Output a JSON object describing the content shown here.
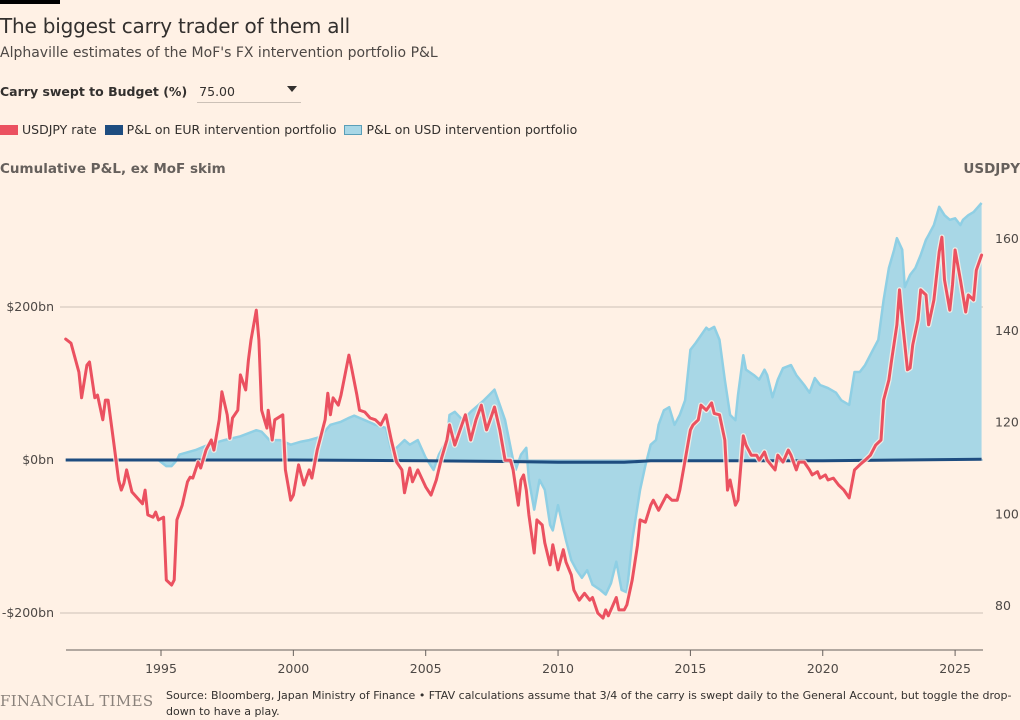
{
  "header": {
    "title": "The biggest carry trader of them all",
    "subtitle": "Alphaville estimates of the MoF's FX intervention portfolio P&L"
  },
  "control": {
    "label": "Carry swept to Budget (%)",
    "selected_value": "75.00",
    "icon": "caret-down-icon"
  },
  "legend": [
    {
      "label": "USDJPY rate",
      "color": "#eb5160",
      "style": "filled"
    },
    {
      "label": "P&L on EUR intervention portfolio",
      "color": "#1e4d80",
      "style": "filled"
    },
    {
      "label": "P&L on USD intervention portfolio",
      "color": "#a8d7e6",
      "style": "outlined"
    }
  ],
  "axes": {
    "left_title": "Cumulative P&L, ex MoF skim",
    "right_title": "USDJPY"
  },
  "footer": {
    "logo": "FINANCIAL TIMES",
    "source": "Source: Bloomberg, Japan Ministry of Finance • FTAV calculations assume that 3/4 of the carry is swept daily to the General Account, but toggle the drop-down to have a play."
  },
  "chart_data": {
    "type": "area",
    "title": "The biggest carry trader of them all",
    "xlabel": "",
    "ylabel": "Cumulative P&L, ex MoF skim",
    "y2label": "USDJPY",
    "xlim": [
      1991.4,
      2026.0
    ],
    "ylim": [
      -250,
      300
    ],
    "y2lim": [
      72,
      169
    ],
    "x_ticks": [
      1995,
      2000,
      2005,
      2010,
      2015,
      2020,
      2025
    ],
    "x_tick_labels": [
      "1995",
      "2000",
      "2005",
      "2010",
      "2015",
      "2020",
      "2025"
    ],
    "y_ticks": [
      200,
      0,
      -200
    ],
    "y_tick_labels": [
      "$200bn",
      "$0bn",
      "-$200bn"
    ],
    "y2_ticks": [
      160,
      140,
      120,
      100,
      80
    ],
    "y2_tick_labels": [
      "160",
      "140",
      "120",
      "100",
      "80"
    ],
    "grid": true,
    "legend_position": "top-left",
    "series": [
      {
        "name": "P&L on USD intervention portfolio",
        "type": "area",
        "axis": "left",
        "units": "USD bn",
        "fill": "#a8d7e6",
        "stroke": "#8fcfe4",
        "x": [
          1991.4,
          1994.9,
          1995.2,
          1995.4,
          1995.6,
          1995.7,
          1996.3,
          1996.8,
          1997.4,
          1998.0,
          1998.6,
          1998.8,
          1999.1,
          1999.5,
          1999.9,
          2000.3,
          2000.6,
          2001.0,
          2001.4,
          2001.8,
          2002.1,
          2002.3,
          2002.7,
          2003.1,
          2003.5,
          2003.7,
          2003.9,
          2004.2,
          2004.4,
          2004.7,
          2005.0,
          2005.3,
          2005.5,
          2005.8,
          2005.9,
          2006.1,
          2006.4,
          2006.7,
          2007.0,
          2007.2,
          2007.4,
          2007.6,
          2007.8,
          2008.0,
          2008.3,
          2008.4,
          2008.6,
          2008.8,
          2008.9,
          2009.1,
          2009.3,
          2009.5,
          2009.7,
          2009.8,
          2010.0,
          2010.3,
          2010.5,
          2010.7,
          2010.9,
          2011.1,
          2011.3,
          2011.6,
          2011.8,
          2012.0,
          2012.2,
          2012.4,
          2012.6,
          2012.8,
          2013.1,
          2013.3,
          2013.5,
          2013.7,
          2013.8,
          2014.0,
          2014.2,
          2014.4,
          2014.6,
          2014.8,
          2015.0,
          2015.2,
          2015.4,
          2015.6,
          2015.7,
          2015.9,
          2016.1,
          2016.3,
          2016.5,
          2016.7,
          2016.8,
          2017.0,
          2017.1,
          2017.4,
          2017.6,
          2017.8,
          2017.9,
          2018.1,
          2018.3,
          2018.5,
          2018.8,
          2019.0,
          2019.3,
          2019.5,
          2019.7,
          2019.9,
          2020.2,
          2020.5,
          2020.7,
          2021.0,
          2021.2,
          2021.4,
          2021.6,
          2021.9,
          2022.1,
          2022.3,
          2022.5,
          2022.7,
          2022.8,
          2023.0,
          2023.1,
          2023.3,
          2023.5,
          2023.7,
          2023.9,
          2024.0,
          2024.2,
          2024.4,
          2024.6,
          2024.8,
          2025.0,
          2025.2,
          2025.3,
          2025.5,
          2025.7,
          2026.0
        ],
        "values": [
          0,
          0,
          -8,
          -8,
          0,
          7,
          13,
          20,
          26,
          31,
          39,
          37,
          26,
          26,
          20,
          24,
          26,
          30,
          46,
          50,
          55,
          58,
          52,
          46,
          42,
          13,
          16,
          26,
          20,
          26,
          3,
          -13,
          7,
          26,
          59,
          63,
          52,
          63,
          72,
          78,
          85,
          92,
          72,
          52,
          0,
          -13,
          7,
          16,
          -26,
          -65,
          -26,
          -39,
          -85,
          -92,
          -59,
          -105,
          -131,
          -144,
          -154,
          -144,
          -163,
          -170,
          -176,
          -161,
          -133,
          -170,
          -173,
          -105,
          -39,
          -7,
          20,
          26,
          46,
          65,
          69,
          46,
          59,
          78,
          144,
          153,
          163,
          173,
          170,
          174,
          157,
          105,
          59,
          52,
          85,
          137,
          118,
          111,
          105,
          118,
          111,
          82,
          105,
          120,
          124,
          111,
          98,
          88,
          107,
          98,
          94,
          88,
          78,
          72,
          115,
          115,
          124,
          144,
          157,
          209,
          251,
          275,
          290,
          275,
          226,
          242,
          251,
          268,
          288,
          294,
          307,
          331,
          320,
          314,
          316,
          307,
          314,
          320,
          324,
          336
        ]
      },
      {
        "name": "P&L on EUR intervention portfolio",
        "type": "line",
        "axis": "left",
        "units": "USD bn",
        "color": "#1e4d80",
        "x": [
          1991.4,
          1995.0,
          2000.0,
          2005.0,
          2008.0,
          2010.0,
          2012.5,
          2013.5,
          2016.0,
          2020.0,
          2023.0,
          2026.0
        ],
        "values": [
          0,
          0,
          0,
          -1,
          -2,
          -3,
          -3,
          -1,
          -1,
          -1,
          0,
          1
        ]
      },
      {
        "name": "USDJPY rate",
        "type": "line",
        "axis": "right",
        "units": "JPY per USD",
        "color": "#eb5160",
        "x": [
          1991.4,
          1991.6,
          1991.9,
          1992.0,
          1992.2,
          1992.3,
          1992.5,
          1992.6,
          1992.8,
          1992.9,
          1993.0,
          1993.2,
          1993.4,
          1993.5,
          1993.6,
          1993.7,
          1993.9,
          1994.3,
          1994.4,
          1994.5,
          1994.7,
          1994.8,
          1994.9,
          1995.1,
          1995.2,
          1995.4,
          1995.5,
          1995.6,
          1995.8,
          1996.0,
          1996.1,
          1996.2,
          1996.4,
          1996.5,
          1996.7,
          1996.9,
          1997.0,
          1997.2,
          1997.3,
          1997.5,
          1997.6,
          1997.7,
          1997.9,
          1998.0,
          1998.2,
          1998.3,
          1998.4,
          1998.6,
          1998.7,
          1998.8,
          1999.0,
          1999.05,
          1999.2,
          1999.3,
          1999.6,
          1999.7,
          1999.9,
          2000.0,
          2000.2,
          2000.4,
          2000.6,
          2000.7,
          2000.9,
          2001.2,
          2001.3,
          2001.4,
          2001.5,
          2001.7,
          2001.8,
          2002.1,
          2002.2,
          2002.4,
          2002.5,
          2002.7,
          2002.9,
          2003.1,
          2003.3,
          2003.5,
          2003.7,
          2003.9,
          2004.1,
          2004.2,
          2004.4,
          2004.5,
          2004.7,
          2005.0,
          2005.2,
          2005.4,
          2005.6,
          2005.8,
          2005.9,
          2006.1,
          2006.3,
          2006.5,
          2006.7,
          2006.9,
          2007.1,
          2007.3,
          2007.5,
          2007.6,
          2007.8,
          2008.0,
          2008.2,
          2008.3,
          2008.5,
          2008.6,
          2008.7,
          2008.8,
          2008.9,
          2009.1,
          2009.2,
          2009.4,
          2009.5,
          2009.7,
          2009.8,
          2010.0,
          2010.2,
          2010.3,
          2010.5,
          2010.6,
          2010.8,
          2011.0,
          2011.2,
          2011.3,
          2011.5,
          2011.7,
          2011.8,
          2011.9,
          2012.2,
          2012.3,
          2012.5,
          2012.6,
          2012.8,
          2013.0,
          2013.1,
          2013.3,
          2013.5,
          2013.6,
          2013.8,
          2013.9,
          2014.1,
          2014.3,
          2014.5,
          2014.6,
          2014.8,
          2015.0,
          2015.1,
          2015.3,
          2015.4,
          2015.6,
          2015.8,
          2015.9,
          2016.1,
          2016.3,
          2016.4,
          2016.5,
          2016.7,
          2016.8,
          2017.0,
          2017.1,
          2017.3,
          2017.5,
          2017.6,
          2017.8,
          2017.9,
          2018.2,
          2018.3,
          2018.5,
          2018.7,
          2018.8,
          2019.0,
          2019.1,
          2019.3,
          2019.5,
          2019.6,
          2019.8,
          2019.9,
          2020.1,
          2020.2,
          2020.4,
          2020.6,
          2020.8,
          2021.0,
          2021.2,
          2021.4,
          2021.6,
          2021.8,
          2022.0,
          2022.2,
          2022.3,
          2022.5,
          2022.6,
          2022.8,
          2022.9,
          2023.0,
          2023.2,
          2023.3,
          2023.4,
          2023.6,
          2023.7,
          2023.9,
          2024.0,
          2024.2,
          2024.4,
          2024.5,
          2024.6,
          2024.8,
          2024.9,
          2025.0,
          2025.2,
          2025.4,
          2025.5,
          2025.7,
          2025.8,
          2026.0
        ],
        "values": [
          138.2,
          137.3,
          131.0,
          125.4,
          132.5,
          133.2,
          125.4,
          126.0,
          120.6,
          124.9,
          124.9,
          116.2,
          107.5,
          105.3,
          106.8,
          109.7,
          104.9,
          102.3,
          105.3,
          99.9,
          99.4,
          100.5,
          98.8,
          99.4,
          85.7,
          84.6,
          85.7,
          98.8,
          102.0,
          107.1,
          108.1,
          107.9,
          111.4,
          110.1,
          114.0,
          116.2,
          114.0,
          120.6,
          126.7,
          121.7,
          116.6,
          121.0,
          122.7,
          130.4,
          127.1,
          133.6,
          138.0,
          144.5,
          138.0,
          122.7,
          118.8,
          122.7,
          116.2,
          120.6,
          121.7,
          109.7,
          103.1,
          104.2,
          110.8,
          106.4,
          109.7,
          107.9,
          114.0,
          120.6,
          126.4,
          121.7,
          125.4,
          123.8,
          126.0,
          134.7,
          131.9,
          126.0,
          122.7,
          122.3,
          121.0,
          120.6,
          119.5,
          121.7,
          116.2,
          111.4,
          109.7,
          104.7,
          110.1,
          107.1,
          109.7,
          106.0,
          104.2,
          107.5,
          112.3,
          116.2,
          119.5,
          115.1,
          118.4,
          121.7,
          116.2,
          120.6,
          123.8,
          118.4,
          121.7,
          123.4,
          118.4,
          111.8,
          111.8,
          109.7,
          102.0,
          107.5,
          108.6,
          105.3,
          99.9,
          91.6,
          98.8,
          97.7,
          93.8,
          89.0,
          93.4,
          87.9,
          92.3,
          89.6,
          86.8,
          83.5,
          81.3,
          82.8,
          81.3,
          81.9,
          78.5,
          77.4,
          79.2,
          77.9,
          81.9,
          79.2,
          79.2,
          80.3,
          85.7,
          93.3,
          98.8,
          98.3,
          102.0,
          103.1,
          100.9,
          102.0,
          104.2,
          103.1,
          103.1,
          105.3,
          111.8,
          118.4,
          119.5,
          120.6,
          123.8,
          122.7,
          124.3,
          122.0,
          121.7,
          116.2,
          105.3,
          107.5,
          102.0,
          103.1,
          117.1,
          115.1,
          112.9,
          112.9,
          111.8,
          113.6,
          111.8,
          109.7,
          112.9,
          111.4,
          114.0,
          112.9,
          109.7,
          111.4,
          111.4,
          109.7,
          108.6,
          109.3,
          107.9,
          108.6,
          107.5,
          107.9,
          106.4,
          105.3,
          103.6,
          109.7,
          110.8,
          111.8,
          112.9,
          115.1,
          116.2,
          124.9,
          129.3,
          133.6,
          141.3,
          148.9,
          142.4,
          131.5,
          131.9,
          136.9,
          142.4,
          148.9,
          147.8,
          141.3,
          146.7,
          157.2,
          160.4,
          151.1,
          144.5,
          150.0,
          157.6,
          151.1,
          144.1,
          147.8,
          146.7,
          153.2,
          156.5
        ]
      }
    ]
  }
}
